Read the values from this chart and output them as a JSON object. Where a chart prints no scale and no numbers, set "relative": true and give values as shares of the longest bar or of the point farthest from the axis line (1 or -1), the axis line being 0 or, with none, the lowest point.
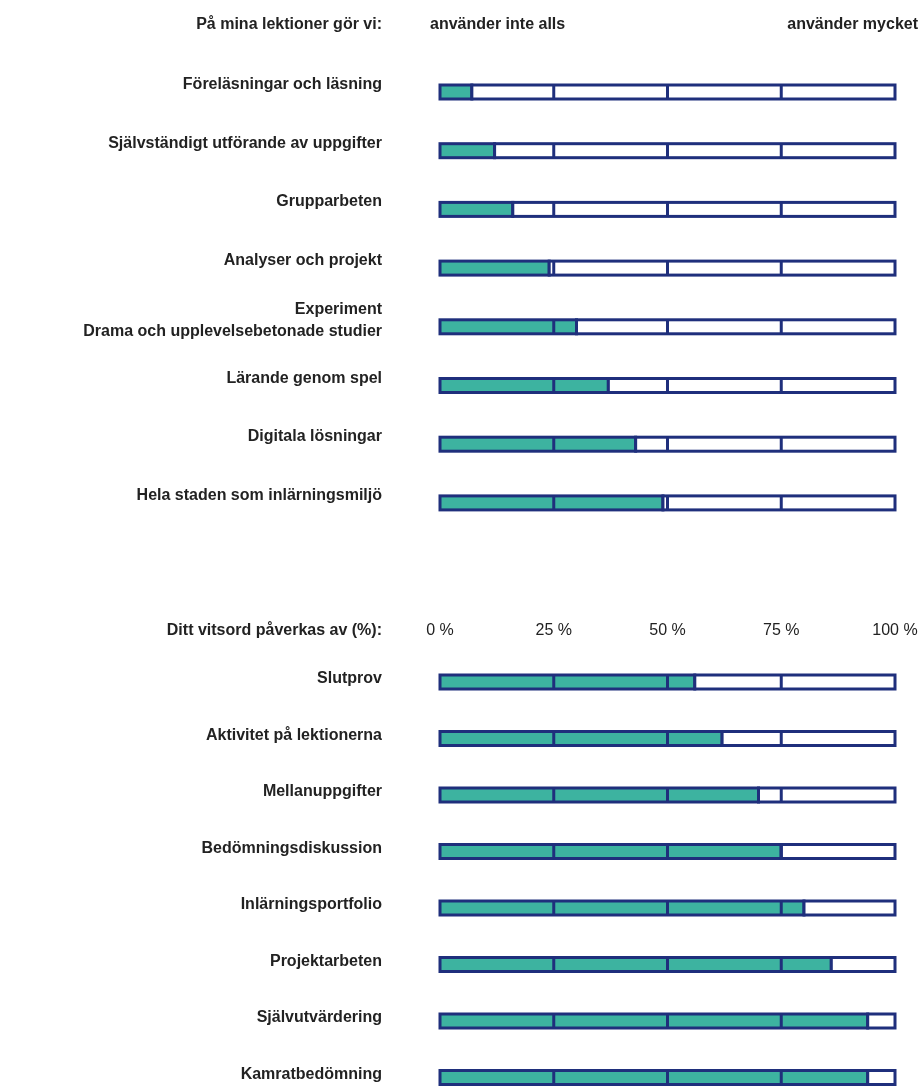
{
  "chart_data": [
    {
      "type": "bar",
      "orientation": "horizontal",
      "stacked": true,
      "relative": true,
      "title": "På mina lektioner gör vi:",
      "annotations": [
        "använder inte alls",
        "använder mycket"
      ],
      "categories": [
        "Föreläsningar och läsning",
        "Självständigt utförande av uppgifter",
        "Grupparbeten",
        "Analyser och projekt",
        "Experiment\nDrama och upplevelsebetonade studier",
        "Lärande genom spel",
        "Digitala lösningar",
        "Hela staden som inlärningsmiljö"
      ],
      "series": [
        {
          "color": "#3db3a0",
          "values": [
            0.07,
            0.12,
            0.16,
            0.24,
            0.3,
            0.37,
            0.43,
            0.49
          ]
        },
        {
          "color": "#ffffff",
          "values": [
            0.93,
            0.88,
            0.84,
            0.76,
            0.7,
            0.63,
            0.57,
            0.51
          ]
        }
      ]
    },
    {
      "type": "bar",
      "orientation": "horizontal",
      "stacked": true,
      "title": "Ditt vitsord påverkas av (%):",
      "xlim": [
        0,
        100
      ],
      "xticks": [
        {
          "value": 0,
          "label": "0 %"
        },
        {
          "value": 25,
          "label": "25 %"
        },
        {
          "value": 50,
          "label": "50 %"
        },
        {
          "value": 75,
          "label": "75 %"
        },
        {
          "value": 100,
          "label": "100 %"
        }
      ],
      "categories": [
        "Slutprov",
        "Aktivitet på lektionerna",
        "Mellanuppgifter",
        "Bedömningsdiskussion",
        "Inlärningsportfolio",
        "Projektarbeten",
        "Självutvärdering",
        "Kamratbedömning"
      ],
      "series": [
        {
          "color": "#3db3a0",
          "values": [
            56,
            62,
            70,
            75,
            80,
            86,
            94,
            94
          ]
        },
        {
          "color": "#ffffff",
          "values": [
            44,
            38,
            30,
            25,
            20,
            14,
            6,
            6
          ]
        }
      ]
    }
  ]
}
